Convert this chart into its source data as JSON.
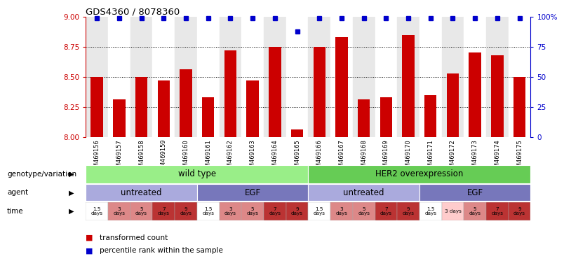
{
  "title": "GDS4360 / 8078360",
  "samples": [
    "GSM469156",
    "GSM469157",
    "GSM469158",
    "GSM469159",
    "GSM469160",
    "GSM469161",
    "GSM469162",
    "GSM469163",
    "GSM469164",
    "GSM469165",
    "GSM469166",
    "GSM469167",
    "GSM469168",
    "GSM469169",
    "GSM469170",
    "GSM469171",
    "GSM469172",
    "GSM469173",
    "GSM469174",
    "GSM469175"
  ],
  "bar_values": [
    8.5,
    8.31,
    8.5,
    8.47,
    8.56,
    8.33,
    8.72,
    8.47,
    8.75,
    8.06,
    8.75,
    8.83,
    8.31,
    8.33,
    8.85,
    8.35,
    8.53,
    8.7,
    8.68,
    8.5
  ],
  "percentile_values": [
    99,
    99,
    99,
    99,
    99,
    99,
    99,
    99,
    99,
    88,
    99,
    99,
    99,
    99,
    99,
    99,
    99,
    99,
    99,
    99
  ],
  "ylim": [
    8.0,
    9.0
  ],
  "yticks_left": [
    8.0,
    8.25,
    8.5,
    8.75,
    9.0
  ],
  "yticks_right": [
    0,
    25,
    50,
    75,
    100
  ],
  "bar_color": "#cc0000",
  "dot_color": "#0000cc",
  "bg_color": "#ffffff",
  "bar_col_colors": [
    "#e8e8e8",
    "#ffffff"
  ],
  "xlabel_color": "#cc0000",
  "ylabel_right_color": "#0000cc",
  "genotype_groups": [
    {
      "text": "wild type",
      "start": 0,
      "end": 10,
      "color": "#99ee88"
    },
    {
      "text": "HER2 overexpression",
      "start": 10,
      "end": 20,
      "color": "#66cc55"
    }
  ],
  "agent_groups": [
    {
      "text": "untreated",
      "start": 0,
      "end": 5,
      "color": "#aaaadd"
    },
    {
      "text": "EGF",
      "start": 5,
      "end": 10,
      "color": "#7777bb"
    },
    {
      "text": "untreated",
      "start": 10,
      "end": 15,
      "color": "#aaaadd"
    },
    {
      "text": "EGF",
      "start": 15,
      "end": 20,
      "color": "#7777bb"
    }
  ],
  "time_cells": [
    {
      "text": "1.5\ndays",
      "color": "#ffffff",
      "idx": 0
    },
    {
      "text": "3\ndays",
      "color": "#dd8888",
      "idx": 1
    },
    {
      "text": "5\ndays",
      "color": "#dd8888",
      "idx": 2
    },
    {
      "text": "7\ndays",
      "color": "#bb3333",
      "idx": 3
    },
    {
      "text": "9\ndays",
      "color": "#bb3333",
      "idx": 4
    },
    {
      "text": "1.5\ndays",
      "color": "#ffffff",
      "idx": 5
    },
    {
      "text": "3\ndays",
      "color": "#dd8888",
      "idx": 6
    },
    {
      "text": "5\ndays",
      "color": "#dd8888",
      "idx": 7
    },
    {
      "text": "7\ndays",
      "color": "#bb3333",
      "idx": 8
    },
    {
      "text": "9\ndays",
      "color": "#bb3333",
      "idx": 9
    },
    {
      "text": "1.5\ndays",
      "color": "#ffffff",
      "idx": 10
    },
    {
      "text": "3\ndays",
      "color": "#dd8888",
      "idx": 11
    },
    {
      "text": "5\ndays",
      "color": "#dd8888",
      "idx": 12
    },
    {
      "text": "7\ndays",
      "color": "#bb3333",
      "idx": 13
    },
    {
      "text": "9\ndays",
      "color": "#bb3333",
      "idx": 14
    },
    {
      "text": "1.5\ndays",
      "color": "#ffffff",
      "idx": 15
    },
    {
      "text": "3 days",
      "color": "#ffcccc",
      "idx": 16
    },
    {
      "text": "5\ndays",
      "color": "#dd8888",
      "idx": 17
    },
    {
      "text": "7\ndays",
      "color": "#bb3333",
      "idx": 18
    },
    {
      "text": "9\ndays",
      "color": "#bb3333",
      "idx": 19
    }
  ],
  "genotype_label": "genotype/variation",
  "agent_label": "agent",
  "time_label": "time",
  "legend_items": [
    {
      "color": "#cc0000",
      "text": "transformed count"
    },
    {
      "color": "#0000cc",
      "text": "percentile rank within the sample"
    }
  ]
}
